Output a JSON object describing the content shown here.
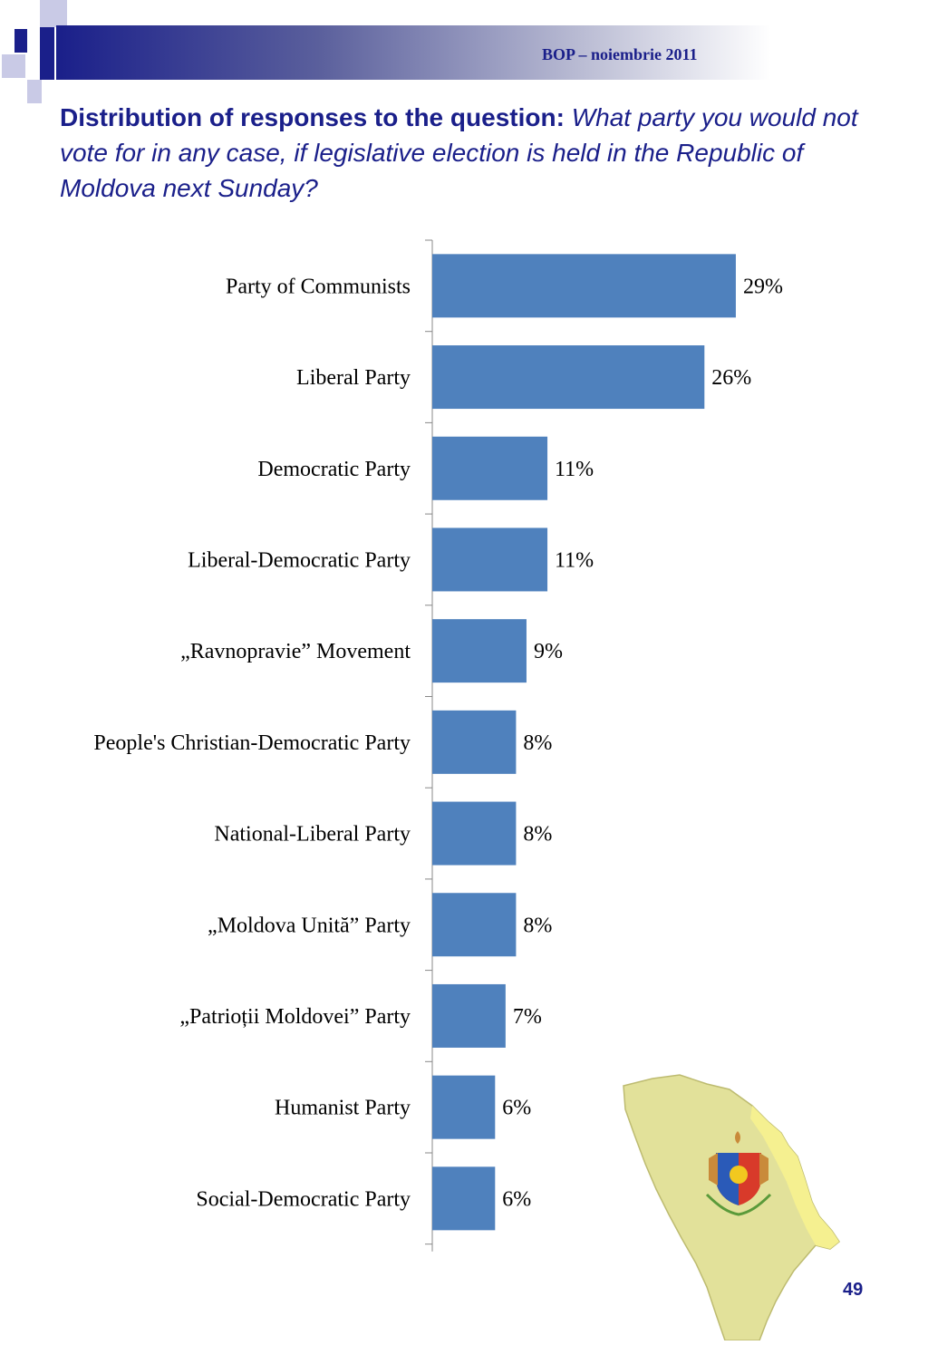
{
  "header": {
    "source": "BOP  – noiembrie 2011"
  },
  "title": {
    "lead": "Distribution of responses to the question:",
    "question": "What party you would not vote for in any case, if legislative election is held in the Republic of Moldova next Sunday?"
  },
  "page_number": "49",
  "colors": {
    "bar": "#4f81bd",
    "accent": "#1a1f8a"
  },
  "chart_data": {
    "type": "bar",
    "orientation": "horizontal",
    "categories": [
      "Party of Communists",
      "Liberal Party",
      "Democratic Party",
      "Liberal-Democratic Party",
      "„Ravnopravie” Movement",
      "People's Christian-Democratic Party",
      "National-Liberal Party",
      "„Moldova Unită” Party",
      "„Patrioții Moldovei” Party",
      "Humanist Party",
      "Social-Democratic Party"
    ],
    "values": [
      29,
      26,
      11,
      11,
      9,
      8,
      8,
      8,
      7,
      6,
      6
    ],
    "value_labels": [
      "29%",
      "26%",
      "11%",
      "11%",
      "9%",
      "8%",
      "8%",
      "8%",
      "7%",
      "6%",
      "6%"
    ],
    "unit": "%",
    "xlim": [
      0,
      30
    ],
    "grid": false,
    "legend": "none"
  },
  "icons": {
    "map": "moldova-map-with-coat-of-arms-icon"
  }
}
